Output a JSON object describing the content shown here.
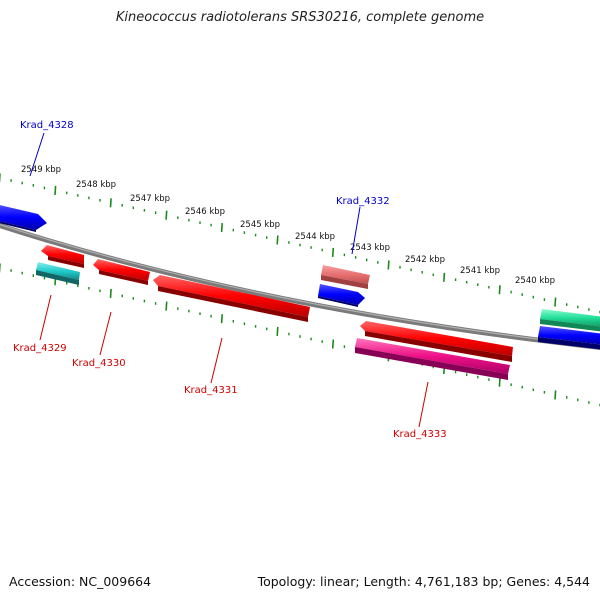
{
  "title": "Kineococcus radiotolerans SRS30216, complete genome",
  "footer": {
    "accession": "Accession: NC_009664",
    "topology": "Topology: linear; Length: 4,761,183 bp; Genes: 4,544"
  },
  "colors": {
    "backbone": "#888888",
    "tick": "#1a8a1a",
    "forward_label": "#0000cc",
    "reverse_label": "#cc0000",
    "gene_red": "#ff0000",
    "gene_pink": "#ee7777",
    "gene_blue": "#0000ff",
    "gene_cyan": "#22cccc",
    "gene_magenta": "#ee1188",
    "gene_teal": "#22dd99"
  },
  "kbp_ticks": [
    "2549 kbp",
    "2548 kbp",
    "2547 kbp",
    "2546 kbp",
    "2545 kbp",
    "2544 kbp",
    "2543 kbp",
    "2542 kbp",
    "2541 kbp",
    "2540 kbp"
  ],
  "gene_labels": [
    "Krad_4328",
    "Krad_4332",
    "Krad_4329",
    "Krad_4330",
    "Krad_4331",
    "Krad_4333"
  ]
}
